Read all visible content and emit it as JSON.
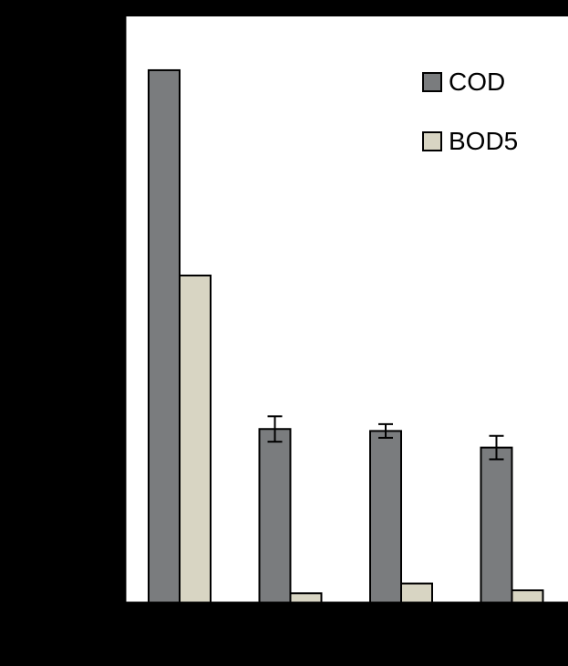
{
  "chart_data": {
    "type": "bar",
    "title": "",
    "xlabel": "",
    "ylabel": "",
    "categories": [
      "",
      "",
      "",
      ""
    ],
    "ylim": [
      0,
      6
    ],
    "ytick_count": 6,
    "grid": false,
    "legend_position": "top-right",
    "series": [
      {
        "name": "COD",
        "color": "#7a7c7e",
        "values": [
          5.45,
          1.78,
          1.76,
          1.59
        ],
        "errors": [
          0,
          0.13,
          0.07,
          0.12
        ]
      },
      {
        "name": "BOD5",
        "color": "#d8d5c3",
        "values": [
          3.35,
          0.1,
          0.2,
          0.13
        ],
        "errors": [
          0,
          0,
          0,
          0
        ]
      }
    ]
  }
}
